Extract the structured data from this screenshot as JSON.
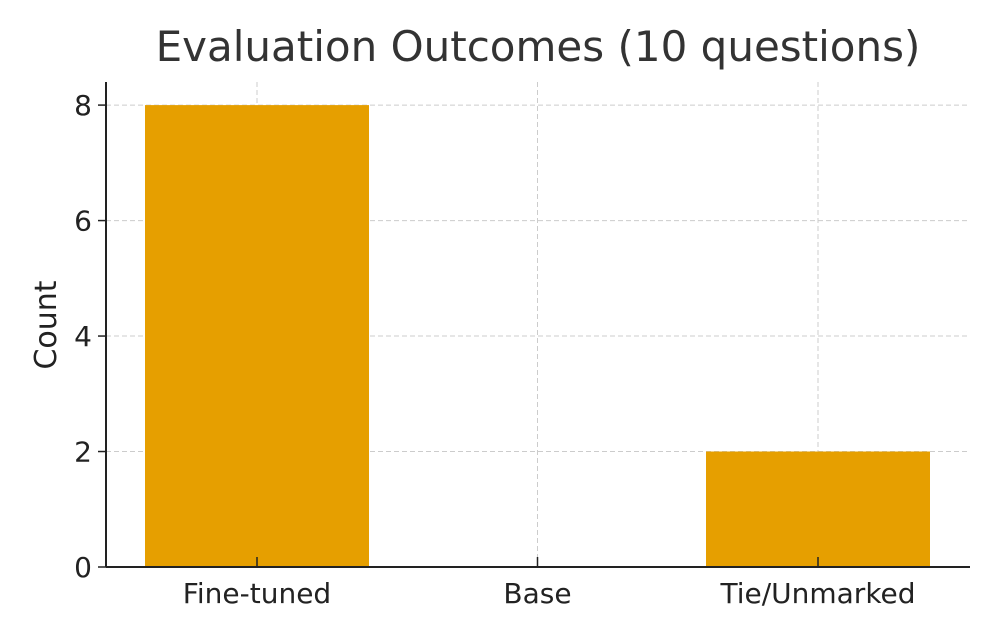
{
  "chart_data": {
    "type": "bar",
    "title": "Evaluation Outcomes (10 questions)",
    "xlabel": "",
    "ylabel": "Count",
    "categories": [
      "Fine-tuned",
      "Base",
      "Tie/Unmarked"
    ],
    "values": [
      8,
      0,
      2
    ],
    "ylim": [
      0,
      8.4
    ],
    "yticks": [
      0,
      2,
      4,
      6,
      8
    ],
    "grid": true,
    "bar_color": "#E69F00",
    "legend": false
  }
}
